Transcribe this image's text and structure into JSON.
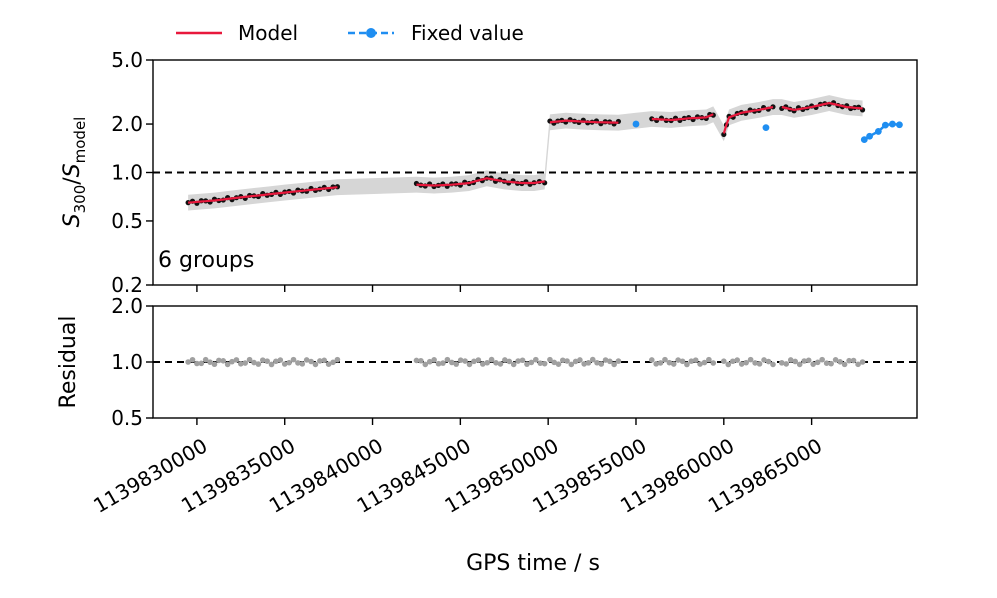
{
  "chart_data": [
    {
      "type": "line",
      "panel": "top",
      "ylabel": {
        "base": "S",
        "sub1": "300",
        "mid": "/",
        "base2": "S",
        "sub2": "model"
      },
      "yscale": "log",
      "ylim": [
        0.2,
        5.0
      ],
      "yticks": [
        0.2,
        0.5,
        1.0,
        2.0,
        5.0
      ],
      "ytick_labels": [
        "0.2",
        "0.5",
        "1.0",
        "2.0",
        "5.0"
      ],
      "reference_line": 1.0,
      "annotation": "6 groups",
      "legend": {
        "position": "top-left, above plot",
        "entries": [
          "Model",
          "Fixed value"
        ]
      },
      "series": [
        {
          "name": "Model",
          "color": "#e8183c",
          "segments": [
            [
              [
                1139829500,
                0.65
              ],
              [
                1139831000,
                0.67
              ],
              [
                1139832000,
                0.69
              ],
              [
                1139833000,
                0.71
              ],
              [
                1139834000,
                0.73
              ],
              [
                1139835000,
                0.75
              ],
              [
                1139836000,
                0.77
              ],
              [
                1139837000,
                0.79
              ],
              [
                1139838000,
                0.81
              ]
            ],
            [
              [
                1139842500,
                0.84
              ],
              [
                1139843500,
                0.83
              ],
              [
                1139844500,
                0.84
              ],
              [
                1139845500,
                0.86
              ],
              [
                1139846500,
                0.92
              ],
              [
                1139847500,
                0.88
              ],
              [
                1139848500,
                0.86
              ],
              [
                1139849200,
                0.86
              ],
              [
                1139849800,
                0.88
              ]
            ],
            [
              [
                1139850100,
                2.05
              ],
              [
                1139851000,
                2.1
              ],
              [
                1139852000,
                2.07
              ],
              [
                1139853000,
                2.05
              ],
              [
                1139854000,
                2.04
              ]
            ],
            [
              [
                1139855900,
                2.15
              ],
              [
                1139857000,
                2.12
              ],
              [
                1139858000,
                2.17
              ],
              [
                1139859000,
                2.2
              ],
              [
                1139859400,
                2.3
              ]
            ],
            [
              [
                1139860000,
                1.75
              ],
              [
                1139860300,
                2.2
              ],
              [
                1139861000,
                2.35
              ],
              [
                1139862000,
                2.45
              ],
              [
                1139862800,
                2.55
              ]
            ],
            [
              [
                1139863300,
                2.55
              ],
              [
                1139864000,
                2.45
              ],
              [
                1139865000,
                2.55
              ],
              [
                1139866000,
                2.7
              ],
              [
                1139867000,
                2.55
              ],
              [
                1139867900,
                2.5
              ]
            ]
          ]
        },
        {
          "name": "Fixed value",
          "color": "#1f8ef1",
          "points": [
            [
              1139855000,
              2.0
            ],
            [
              1139862400,
              1.9
            ],
            [
              1139868000,
              1.6
            ],
            [
              1139868300,
              1.68
            ],
            [
              1139868800,
              1.8
            ],
            [
              1139869200,
              1.97
            ],
            [
              1139869600,
              2.0
            ],
            [
              1139870000,
              1.98
            ]
          ]
        }
      ]
    },
    {
      "type": "scatter",
      "panel": "bottom",
      "ylabel": "Residual",
      "yscale": "log",
      "ylim": [
        0.5,
        2.0
      ],
      "yticks": [
        0.5,
        1.0,
        2.0
      ],
      "ytick_labels": [
        "0.5",
        "1.0",
        "2.0"
      ],
      "reference_line": 1.0,
      "series": [
        {
          "name": "Residual",
          "color": "#a0a0a0",
          "value": 1.0,
          "ranges": [
            [
              1139829500,
              1139838000
            ],
            [
              1139842500,
              1139849800
            ],
            [
              1139850100,
              1139854000
            ],
            [
              1139855900,
              1139859400
            ],
            [
              1139860000,
              1139862800
            ],
            [
              1139863300,
              1139867900
            ]
          ]
        }
      ]
    }
  ],
  "xaxis": {
    "label": "GPS time / s",
    "xlim": [
      1139827500,
      1139871000
    ],
    "ticks": [
      1139830000,
      1139835000,
      1139840000,
      1139845000,
      1139850000,
      1139855000,
      1139860000,
      1139865000
    ],
    "tick_labels": [
      "1139830000",
      "1139835000",
      "1139840000",
      "1139845000",
      "1139850000",
      "1139855000",
      "1139860000",
      "1139865000"
    ]
  }
}
